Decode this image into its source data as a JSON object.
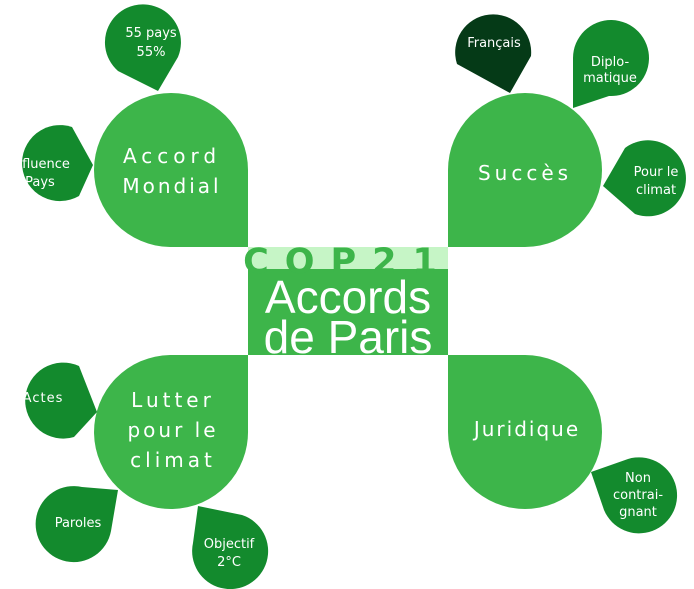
{
  "colors": {
    "main": "#3db54a",
    "dark": "#138a2d",
    "darkest": "#053a17",
    "center_bg": "#3db54a",
    "center_band": "#c6f5c6",
    "text": "#ffffff"
  },
  "center": {
    "title": "COP21",
    "line1": "Accords",
    "line2": "de Paris"
  },
  "branches": {
    "accord": {
      "label_l1": "Accord",
      "label_l2": "Mondial",
      "leaves": {
        "pays": {
          "l1": "55 pays",
          "l2": "55%"
        },
        "influence": {
          "l1": "Influence",
          "l2": "Pays"
        }
      }
    },
    "succes": {
      "label": "Succès",
      "leaves": {
        "francais": {
          "l1": "Français"
        },
        "diplo": {
          "l1": "Diplo-",
          "l2": "matique"
        },
        "climat": {
          "l1": "Pour le",
          "l2": "climat"
        }
      }
    },
    "lutter": {
      "label_l1": "Lutter",
      "label_l2": "pour le",
      "label_l3": "climat",
      "leaves": {
        "actes": {
          "l1": "Actes"
        },
        "paroles": {
          "l1": "Paroles"
        },
        "objectif": {
          "l1": "Objectif",
          "l2": "2°C"
        }
      }
    },
    "juridique": {
      "label": "Juridique",
      "leaves": {
        "noncontr": {
          "l1": "Non",
          "l2": "contrai-",
          "l3": "gnant"
        }
      }
    }
  }
}
